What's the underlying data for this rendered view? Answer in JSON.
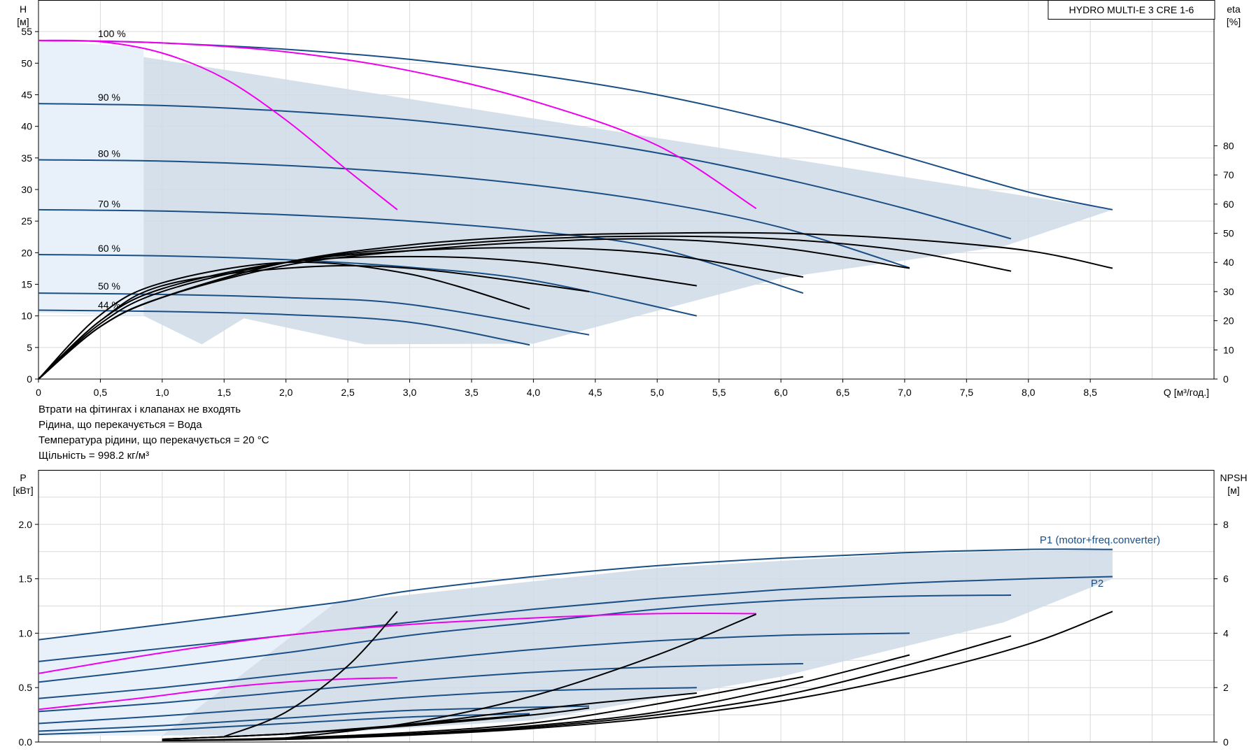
{
  "chart_data": [
    {
      "type": "line",
      "title": "HYDRO MULTI-E 3 CRE 1-6",
      "ylabel": "H",
      "yunit": "[м]",
      "y2label": "eta",
      "y2unit": "[%]",
      "xlabel": "Q [м³/год.]",
      "xlim": [
        0,
        9.5
      ],
      "ylim": [
        0,
        60
      ],
      "y2lim": [
        0,
        130
      ],
      "grid": true,
      "x_ticks": [
        "0",
        "0,5",
        "1,0",
        "1,5",
        "2,0",
        "2,5",
        "3,0",
        "3,5",
        "4,0",
        "4,5",
        "5,0",
        "5,5",
        "6,0",
        "6,5",
        "7,0",
        "7,5",
        "8,0",
        "8,5"
      ],
      "y_ticks": [
        "0",
        "5",
        "10",
        "15",
        "20",
        "25",
        "30",
        "35",
        "40",
        "45",
        "50",
        "55"
      ],
      "y2_ticks": [
        "0",
        "10",
        "20",
        "30",
        "40",
        "50",
        "60",
        "70",
        "80"
      ],
      "speed_labels": [
        {
          "text": "100 %",
          "h": 53.6
        },
        {
          "text": "90 %",
          "h": 43.5
        },
        {
          "text": "80 %",
          "h": 34.6
        },
        {
          "text": "70 %",
          "h": 26.6
        },
        {
          "text": "60 %",
          "h": 19.6
        },
        {
          "text": "50 %",
          "h": 13.6
        },
        {
          "text": "44 %",
          "h": 10.6
        }
      ],
      "envelope": [
        {
          "x": 0,
          "y": 53.6
        },
        {
          "x": 8.68,
          "y": 26.8
        },
        {
          "x": 7.8,
          "y": 21
        },
        {
          "x": 6.0,
          "y": 16
        },
        {
          "x": 4.0,
          "y": 5.6
        },
        {
          "x": 2.64,
          "y": 5.5
        },
        {
          "x": 1.66,
          "y": 9.6
        },
        {
          "x": 1.32,
          "y": 5.5
        },
        {
          "x": 0.85,
          "y": 10
        },
        {
          "x": 0,
          "y": 10.5
        }
      ],
      "series": [
        {
          "color": "#1a4f86",
          "x": [
            0,
            0.5,
            1,
            2,
            3,
            4,
            5,
            6,
            7,
            8,
            8.68
          ],
          "y": [
            53.6,
            53.5,
            53.2,
            52.2,
            50.6,
            48.2,
            45,
            40.6,
            35.2,
            29.6,
            26.8
          ]
        },
        {
          "color": "#1a4f86",
          "x": [
            0,
            1,
            2,
            3,
            4,
            5,
            6,
            7,
            7.86
          ],
          "y": [
            43.6,
            43.3,
            42.4,
            41.0,
            38.8,
            35.8,
            31.8,
            27.0,
            22.2
          ]
        },
        {
          "color": "#1a4f86",
          "x": [
            0,
            1,
            2,
            3,
            4,
            5,
            6,
            7.04
          ],
          "y": [
            34.7,
            34.5,
            33.8,
            32.6,
            30.7,
            28.0,
            24.0,
            17.6
          ]
        },
        {
          "color": "#1a4f86",
          "x": [
            0,
            1,
            2,
            3,
            4,
            5,
            6.18
          ],
          "y": [
            26.8,
            26.6,
            26.0,
            25.0,
            23.4,
            20.7,
            13.6
          ]
        },
        {
          "color": "#1a4f86",
          "x": [
            0,
            1,
            2,
            3,
            4,
            5.32
          ],
          "y": [
            19.7,
            19.5,
            18.9,
            17.7,
            15.6,
            10.0
          ]
        },
        {
          "color": "#1a4f86",
          "x": [
            0,
            1,
            2,
            3,
            4.45
          ],
          "y": [
            13.6,
            13.4,
            12.9,
            11.8,
            7.0
          ]
        },
        {
          "color": "#1a4f86",
          "x": [
            0,
            1,
            2,
            3,
            3.97
          ],
          "y": [
            10.9,
            10.7,
            10.2,
            9.0,
            5.4
          ]
        },
        {
          "color": "#ee00ee",
          "x": [
            0,
            0.5,
            1,
            1.5,
            2,
            2.5,
            2.9
          ],
          "y": [
            53.6,
            53.4,
            51.6,
            47.6,
            41,
            33,
            26.8
          ]
        },
        {
          "color": "#ee00ee",
          "x": [
            0,
            1,
            2,
            3,
            4,
            5,
            5.8
          ],
          "y": [
            53.6,
            53.2,
            51.8,
            48.8,
            44,
            37,
            27.0
          ]
        },
        {
          "color": "#000000",
          "x": [
            0,
            0.5,
            1,
            2,
            3,
            4,
            5,
            6,
            7,
            8,
            8.68
          ],
          "y2": [
            0,
            18,
            28,
            40,
            46,
            49,
            50,
            50,
            48,
            44,
            38
          ]
        },
        {
          "color": "#000000",
          "x": [
            0,
            0.5,
            1,
            2,
            3,
            4,
            5,
            6,
            7,
            7.86
          ],
          "y2": [
            0,
            18,
            28,
            40,
            45,
            48,
            49,
            48,
            44,
            37
          ]
        },
        {
          "color": "#000000",
          "x": [
            0,
            0.5,
            1,
            2,
            3,
            4,
            5,
            6,
            7.04
          ],
          "y2": [
            0,
            18,
            28,
            39,
            44,
            47,
            48,
            45,
            38
          ]
        },
        {
          "color": "#000000",
          "x": [
            0,
            0.5,
            1,
            2,
            3,
            4,
            5,
            6.18
          ],
          "y2": [
            0,
            19,
            30,
            40,
            44,
            45,
            43,
            35
          ]
        },
        {
          "color": "#000000",
          "x": [
            0,
            0.5,
            1,
            2,
            3,
            4,
            5.32
          ],
          "y2": [
            0,
            20,
            31,
            40,
            42,
            40,
            32
          ]
        },
        {
          "color": "#000000",
          "x": [
            0,
            0.5,
            1,
            2,
            3,
            4.45
          ],
          "y2": [
            0,
            20,
            32,
            38,
            38,
            30
          ]
        },
        {
          "color": "#000000",
          "x": [
            0,
            0.5,
            1,
            2,
            3,
            3.97
          ],
          "y2": [
            0,
            22,
            33,
            40,
            36,
            24
          ]
        }
      ]
    },
    {
      "type": "line",
      "ylabel": "P",
      "yunit": "[кВт]",
      "y2label": "NPSH",
      "y2unit": "[м]",
      "xlim": [
        0,
        9.5
      ],
      "ylim": [
        0,
        2.5
      ],
      "y2lim": [
        0,
        10
      ],
      "grid": true,
      "y_ticks": [
        "0.0",
        "0.5",
        "1.0",
        "1.5",
        "2.0"
      ],
      "y2_ticks": [
        "0",
        "2",
        "4",
        "6",
        "8"
      ],
      "series_labels": [
        {
          "text": "P1 (motor+freq.converter)"
        },
        {
          "text": "P2"
        }
      ],
      "envelope": [
        {
          "x": 0,
          "y": 0.94
        },
        {
          "x": 2.4,
          "y": 1.28
        },
        {
          "x": 5,
          "y": 1.6
        },
        {
          "x": 7,
          "y": 1.73
        },
        {
          "x": 8.68,
          "y": 1.77
        },
        {
          "x": 8.68,
          "y": 1.5
        },
        {
          "x": 7.8,
          "y": 1.1
        },
        {
          "x": 6.0,
          "y": 0.6
        },
        {
          "x": 4.0,
          "y": 0.2
        },
        {
          "x": 2.0,
          "y": 0.06
        },
        {
          "x": 0,
          "y": 0.06
        }
      ],
      "series": [
        {
          "color": "#1a4f86",
          "x": [
            0,
            1,
            2.4,
            3,
            4,
            5,
            6,
            7,
            8,
            8.68
          ],
          "y": [
            0.94,
            1.08,
            1.28,
            1.39,
            1.52,
            1.62,
            1.69,
            1.74,
            1.77,
            1.77
          ]
        },
        {
          "color": "#1a4f86",
          "x": [
            0,
            1,
            2,
            3,
            4,
            5,
            6,
            7,
            8,
            8.68
          ],
          "y": [
            0.74,
            0.86,
            0.98,
            1.1,
            1.22,
            1.32,
            1.4,
            1.46,
            1.5,
            1.52
          ]
        },
        {
          "color": "#1a4f86",
          "x": [
            0,
            1,
            2,
            3,
            4,
            5,
            6,
            7,
            7.86
          ],
          "y": [
            0.55,
            0.68,
            0.82,
            0.98,
            1.1,
            1.22,
            1.3,
            1.34,
            1.35
          ]
        },
        {
          "color": "#1a4f86",
          "x": [
            0,
            1,
            2,
            3,
            4,
            5,
            6,
            7.04
          ],
          "y": [
            0.4,
            0.5,
            0.62,
            0.74,
            0.85,
            0.93,
            0.98,
            1.0
          ]
        },
        {
          "color": "#1a4f86",
          "x": [
            0,
            1,
            2,
            3,
            4,
            5,
            6.18
          ],
          "y": [
            0.28,
            0.36,
            0.46,
            0.56,
            0.64,
            0.69,
            0.72
          ]
        },
        {
          "color": "#1a4f86",
          "x": [
            0,
            1,
            2,
            3,
            4,
            5.32
          ],
          "y": [
            0.17,
            0.24,
            0.32,
            0.41,
            0.47,
            0.5
          ]
        },
        {
          "color": "#1a4f86",
          "x": [
            0,
            1,
            2,
            3,
            4.45
          ],
          "y": [
            0.1,
            0.15,
            0.22,
            0.29,
            0.33
          ]
        },
        {
          "color": "#1a4f86",
          "x": [
            0,
            1,
            2,
            3,
            3.97
          ],
          "y": [
            0.07,
            0.11,
            0.17,
            0.23,
            0.26
          ]
        },
        {
          "color": "#ee00ee",
          "x": [
            0,
            1,
            2,
            3,
            4,
            5,
            5.8
          ],
          "y": [
            0.63,
            0.82,
            0.98,
            1.08,
            1.14,
            1.18,
            1.18
          ]
        },
        {
          "color": "#ee00ee",
          "x": [
            0,
            0.8,
            1.5,
            2,
            2.5,
            2.9
          ],
          "y": [
            0.3,
            0.4,
            0.5,
            0.55,
            0.58,
            0.59
          ]
        },
        {
          "color": "#000000",
          "x": [
            1.5,
            2,
            2.5,
            2.9
          ],
          "y2": [
            0.2,
            1.1,
            2.8,
            4.8
          ]
        },
        {
          "color": "#000000",
          "x": [
            2.0,
            3,
            4,
            5,
            5.8
          ],
          "y2": [
            0.15,
            0.7,
            1.7,
            3.2,
            4.7
          ]
        },
        {
          "color": "#000000",
          "x": [
            1,
            2,
            3,
            4,
            5.32
          ],
          "y2": [
            0.1,
            0.3,
            0.65,
            1.2,
            1.8
          ]
        },
        {
          "color": "#000000",
          "x": [
            1,
            2,
            3,
            4,
            4.45
          ],
          "y2": [
            0.1,
            0.3,
            0.6,
            1.0,
            1.25
          ]
        },
        {
          "color": "#000000",
          "x": [
            1,
            2,
            3,
            3.97
          ],
          "y2": [
            0.1,
            0.3,
            0.65,
            1.0
          ]
        },
        {
          "color": "#000000",
          "x": [
            1,
            2,
            3,
            4,
            5,
            6.18
          ],
          "y2": [
            0.05,
            0.15,
            0.35,
            0.7,
            1.4,
            2.4
          ]
        },
        {
          "color": "#000000",
          "x": [
            1,
            2,
            3,
            4,
            5,
            6,
            7.04
          ],
          "y2": [
            0.05,
            0.12,
            0.3,
            0.6,
            1.1,
            2.0,
            3.2
          ]
        },
        {
          "color": "#000000",
          "x": [
            1,
            2,
            3,
            4,
            5,
            6,
            7,
            7.86
          ],
          "y2": [
            0.05,
            0.12,
            0.28,
            0.55,
            1.0,
            1.7,
            2.8,
            3.9
          ]
        },
        {
          "color": "#000000",
          "x": [
            1,
            2,
            3,
            4,
            5,
            6,
            7,
            8,
            8.68
          ],
          "y2": [
            0.05,
            0.1,
            0.25,
            0.5,
            0.9,
            1.5,
            2.4,
            3.6,
            4.8
          ]
        }
      ]
    }
  ],
  "notes": [
    "Втрати на фітингах і клапанах не входять",
    "Рідина, що перекачується = Вода",
    "Температура рідини, що перекачується = 20 °C",
    "Щільність = 998.2 кг/м³"
  ]
}
